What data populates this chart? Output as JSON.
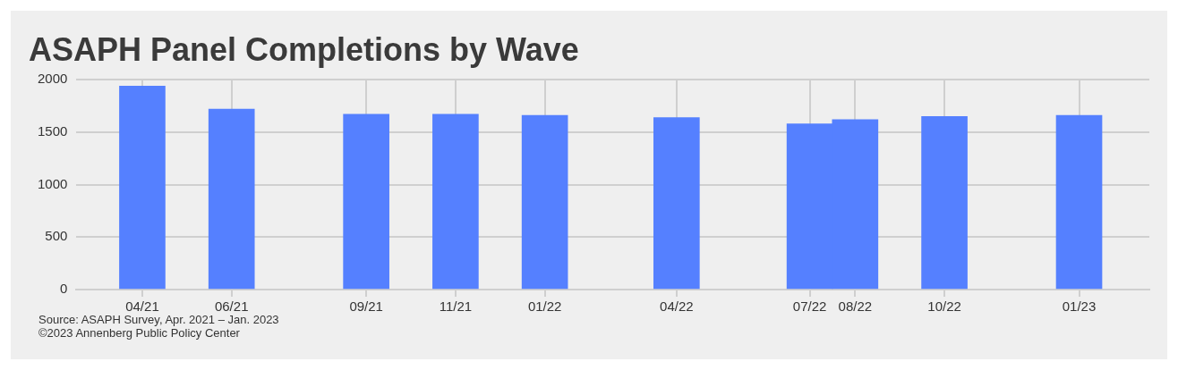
{
  "chart_data": {
    "type": "bar",
    "title": "ASAPH Panel Completions by Wave",
    "x": [
      "2021-04",
      "2021-06",
      "2021-09",
      "2021-11",
      "2022-01",
      "2022-04",
      "2022-07",
      "2022-08",
      "2022-10",
      "2023-01"
    ],
    "values": [
      1940,
      1720,
      1670,
      1670,
      1660,
      1640,
      1580,
      1620,
      1650,
      1660
    ],
    "color": "#5580ff",
    "xlim": [
      "2021-02-15",
      "2023-02-18"
    ],
    "xticks": [
      {
        "value": "2021-04",
        "label": "04/21"
      },
      {
        "value": "2021-06",
        "label": "06/21"
      },
      {
        "value": "2021-09",
        "label": "09/21"
      },
      {
        "value": "2021-11",
        "label": "11/21"
      },
      {
        "value": "2022-01",
        "label": "01/22"
      },
      {
        "value": "2022-04",
        "label": "04/22"
      },
      {
        "value": "2022-07",
        "label": "07/22"
      },
      {
        "value": "2022-08",
        "label": "08/22"
      },
      {
        "value": "2022-10",
        "label": "10/22"
      },
      {
        "value": "2023-01",
        "label": "01/23"
      }
    ],
    "ylim": [
      0,
      2000
    ],
    "yticks": [
      0,
      500,
      1000,
      1500,
      2000
    ],
    "grid": true,
    "annotations": [
      "Source: ASAPH Survey, Apr. 2021 – Jan. 2023",
      "©2023 Annenberg Public Policy Center"
    ]
  }
}
